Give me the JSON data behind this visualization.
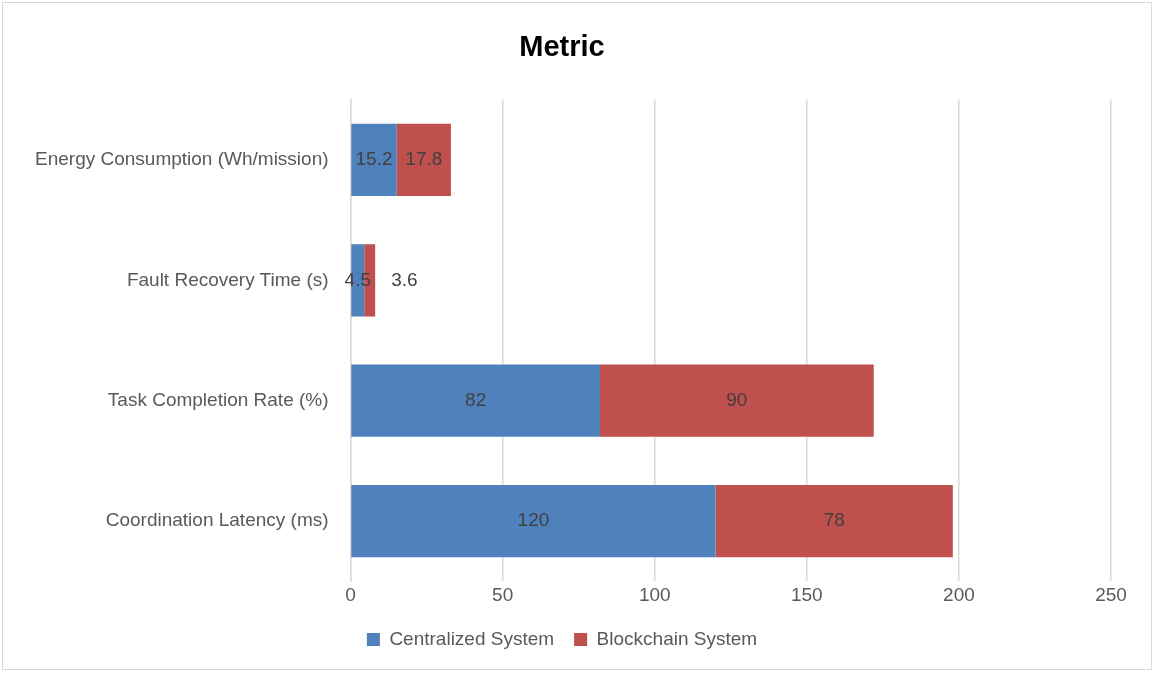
{
  "chart_data": {
    "type": "bar",
    "title": "Metric",
    "orientation": "horizontal",
    "stacked": true,
    "categories": [
      "Energy Consumption (Wh/mission)",
      "Fault Recovery Time (s)",
      "Task Completion Rate (%)",
      "Coordination Latency (ms)"
    ],
    "series": [
      {
        "name": "Centralized System",
        "color": "#4f81bd",
        "values": [
          15.2,
          4.5,
          82,
          120
        ]
      },
      {
        "name": "Blockchain System",
        "color": "#c0504d",
        "values": [
          17.8,
          3.6,
          90,
          78
        ]
      }
    ],
    "xlim": [
      0,
      250
    ],
    "xticks": [
      0,
      50,
      100,
      150,
      200,
      250
    ],
    "grid": "x",
    "legend": "bottom",
    "data_labels": true
  }
}
